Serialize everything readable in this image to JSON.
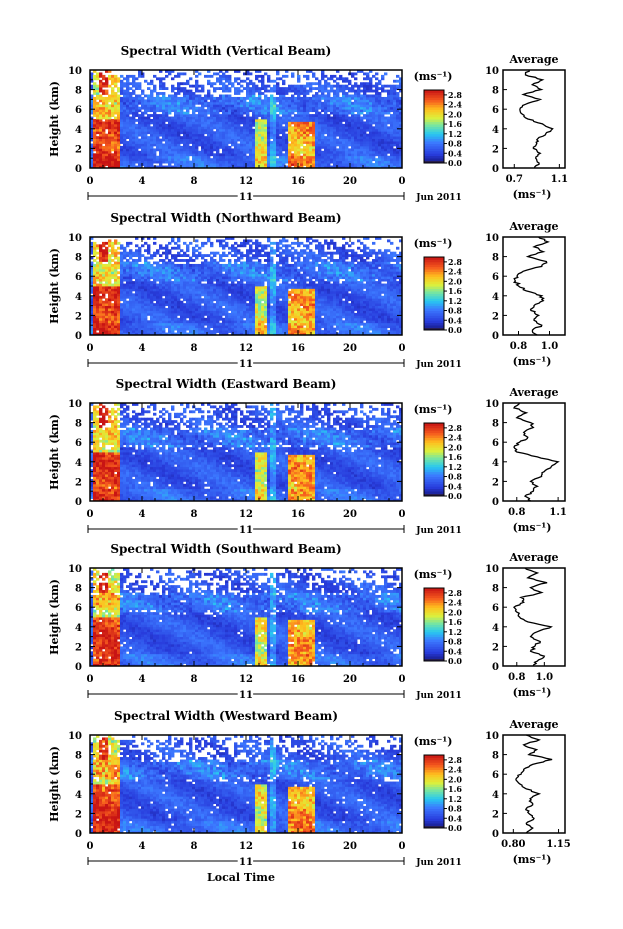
{
  "chart_data": [
    {
      "type": "heatmap",
      "title": "Spectral Width (Vertical Beam)",
      "ylabel": "Height (km)",
      "xlabel": "",
      "x_ticks": [
        "0",
        "4",
        "8",
        "12",
        "16",
        "20",
        "0"
      ],
      "y_ticks": [
        "0",
        "2",
        "4",
        "6",
        "8",
        "10"
      ],
      "xlim": [
        0,
        24
      ],
      "ylim": [
        0,
        10
      ],
      "date_day": "11",
      "date_month": "Jun 2011",
      "colorbar": {
        "unit": "(ms⁻¹)",
        "ticks": [
          "0.0",
          "0.4",
          "0.8",
          "1.2",
          "1.6",
          "2.0",
          "2.4",
          "2.8"
        ],
        "range": [
          0,
          3.0
        ]
      },
      "profile": {
        "title": "Average",
        "xlabel": "(ms⁻¹)",
        "x_ticks": [
          "0.7",
          "1.1"
        ],
        "x_tick_values": [
          0.7,
          1.1
        ],
        "xlim": [
          0.6,
          1.15
        ],
        "y_ticks": [
          "0",
          "2",
          "4",
          "6",
          "8",
          "10"
        ],
        "heights": [
          0,
          0.5,
          1,
          1.5,
          2,
          2.5,
          3,
          3.5,
          4,
          4.5,
          5,
          5.5,
          6,
          6.5,
          7,
          7.5,
          8,
          8.5,
          9,
          9.5,
          10
        ],
        "values": [
          0.88,
          0.92,
          0.89,
          0.93,
          0.87,
          0.9,
          0.91,
          0.98,
          1.04,
          0.95,
          0.82,
          0.77,
          0.75,
          0.8,
          0.93,
          0.78,
          0.94,
          0.86,
          0.95,
          0.8,
          0.83
        ]
      }
    },
    {
      "type": "heatmap",
      "title": "Spectral Width (Northward Beam)",
      "ylabel": "Height (km)",
      "xlabel": "",
      "x_ticks": [
        "0",
        "4",
        "8",
        "12",
        "16",
        "20",
        "0"
      ],
      "y_ticks": [
        "0",
        "2",
        "4",
        "6",
        "8",
        "10"
      ],
      "xlim": [
        0,
        24
      ],
      "ylim": [
        0,
        10
      ],
      "date_day": "11",
      "date_month": "Jun 2011",
      "colorbar": {
        "unit": "(ms⁻¹)",
        "ticks": [
          "0.0",
          "0.4",
          "0.8",
          "1.2",
          "1.6",
          "2.0",
          "2.4",
          "2.8"
        ],
        "range": [
          0,
          3.0
        ]
      },
      "profile": {
        "title": "Average",
        "xlabel": "(ms⁻¹)",
        "x_ticks": [
          "0.8",
          "1.0"
        ],
        "x_tick_values": [
          0.8,
          1.0
        ],
        "xlim": [
          0.7,
          1.1
        ],
        "y_ticks": [
          "0",
          "2",
          "4",
          "6",
          "8",
          "10"
        ],
        "heights": [
          0,
          0.5,
          1,
          1.5,
          2,
          2.5,
          3,
          3.5,
          4,
          4.5,
          5,
          5.5,
          6,
          6.5,
          7,
          7.5,
          8,
          8.5,
          9,
          9.5,
          10
        ],
        "values": [
          0.92,
          0.89,
          0.95,
          0.9,
          0.93,
          0.88,
          0.9,
          0.96,
          0.95,
          0.85,
          0.8,
          0.78,
          0.79,
          0.83,
          0.95,
          0.98,
          0.86,
          0.96,
          0.9,
          0.99,
          0.93
        ]
      }
    },
    {
      "type": "heatmap",
      "title": "Spectral Width (Eastward Beam)",
      "ylabel": "Height (km)",
      "xlabel": "",
      "x_ticks": [
        "0",
        "4",
        "8",
        "12",
        "16",
        "20",
        "0"
      ],
      "y_ticks": [
        "0",
        "2",
        "4",
        "6",
        "8",
        "10"
      ],
      "xlim": [
        0,
        24
      ],
      "ylim": [
        0,
        10
      ],
      "date_day": "11",
      "date_month": "Jun 2011",
      "colorbar": {
        "unit": "(ms⁻¹)",
        "ticks": [
          "0.0",
          "0.4",
          "0.8",
          "1.2",
          "1.6",
          "2.0",
          "2.4",
          "2.8"
        ],
        "range": [
          0,
          3.0
        ]
      },
      "profile": {
        "title": "Average",
        "xlabel": "(ms⁻¹)",
        "x_ticks": [
          "0.8",
          "1.1"
        ],
        "x_tick_values": [
          0.8,
          1.1
        ],
        "xlim": [
          0.7,
          1.15
        ],
        "y_ticks": [
          "0",
          "2",
          "4",
          "6",
          "8",
          "10"
        ],
        "heights": [
          0,
          0.5,
          1,
          1.5,
          2,
          2.5,
          3,
          3.5,
          4,
          4.5,
          5,
          5.5,
          6,
          6.5,
          7,
          7.5,
          8,
          8.5,
          9,
          9.5,
          10
        ],
        "values": [
          0.9,
          0.86,
          0.92,
          0.95,
          0.9,
          0.98,
          1.0,
          1.05,
          1.1,
          0.95,
          0.8,
          0.78,
          0.82,
          0.88,
          0.85,
          0.92,
          0.9,
          0.8,
          0.87,
          0.78,
          0.82
        ]
      }
    },
    {
      "type": "heatmap",
      "title": "Spectral Width (Southward Beam)",
      "ylabel": "Height (km)",
      "xlabel": "",
      "x_ticks": [
        "0",
        "4",
        "8",
        "12",
        "16",
        "20",
        "0"
      ],
      "y_ticks": [
        "0",
        "2",
        "4",
        "6",
        "8",
        "10"
      ],
      "xlim": [
        0,
        24
      ],
      "ylim": [
        0,
        10
      ],
      "date_day": "11",
      "date_month": "Jun 2011",
      "colorbar": {
        "unit": "(ms⁻¹)",
        "ticks": [
          "0.0",
          "0.4",
          "0.8",
          "1.2",
          "1.6",
          "2.0",
          "2.4",
          "2.8"
        ],
        "range": [
          0,
          3.0
        ]
      },
      "profile": {
        "title": "Average",
        "xlabel": "(ms⁻¹)",
        "x_ticks": [
          "0.8",
          "1.0"
        ],
        "x_tick_values": [
          0.8,
          1.0
        ],
        "xlim": [
          0.7,
          1.15
        ],
        "y_ticks": [
          "0",
          "2",
          "4",
          "6",
          "8",
          "10"
        ],
        "heights": [
          0,
          0.5,
          1,
          1.5,
          2,
          2.5,
          3,
          3.5,
          4,
          4.5,
          5,
          5.5,
          6,
          6.5,
          7,
          7.5,
          8,
          8.5,
          9,
          9.5,
          10
        ],
        "values": [
          0.92,
          0.95,
          1.0,
          0.9,
          0.93,
          0.97,
          0.9,
          0.95,
          1.05,
          0.88,
          0.82,
          0.8,
          0.78,
          0.85,
          0.83,
          0.98,
          0.9,
          1.02,
          0.88,
          0.95,
          0.86
        ]
      }
    },
    {
      "type": "heatmap",
      "title": "Spectral Width (Westward Beam)",
      "ylabel": "Height (km)",
      "xlabel": "Local Time",
      "x_ticks": [
        "0",
        "4",
        "8",
        "12",
        "16",
        "20",
        "0"
      ],
      "y_ticks": [
        "0",
        "2",
        "4",
        "6",
        "8",
        "10"
      ],
      "xlim": [
        0,
        24
      ],
      "ylim": [
        0,
        10
      ],
      "date_day": "11",
      "date_month": "Jun 2011",
      "colorbar": {
        "unit": "(ms⁻¹)",
        "ticks": [
          "0.0",
          "0.4",
          "0.8",
          "1.2",
          "1.6",
          "2.0",
          "2.4",
          "2.8"
        ],
        "range": [
          0,
          3.0
        ]
      },
      "profile": {
        "title": "Average",
        "xlabel": "(ms⁻¹)",
        "x_ticks": [
          "0.80",
          "1.15"
        ],
        "x_tick_values": [
          0.8,
          1.15
        ],
        "xlim": [
          0.72,
          1.2
        ],
        "y_ticks": [
          "0",
          "2",
          "4",
          "6",
          "8",
          "10"
        ],
        "heights": [
          0,
          0.5,
          1,
          1.5,
          2,
          2.5,
          3,
          3.5,
          4,
          4.5,
          5,
          5.5,
          6,
          6.5,
          7,
          7.5,
          8,
          8.5,
          9,
          9.5,
          10
        ],
        "values": [
          0.9,
          0.95,
          0.9,
          0.96,
          0.92,
          0.9,
          0.95,
          0.93,
          1.0,
          0.9,
          0.85,
          0.82,
          0.86,
          0.88,
          0.95,
          1.1,
          0.92,
          0.98,
          0.88,
          1.0,
          0.9
        ]
      }
    }
  ]
}
